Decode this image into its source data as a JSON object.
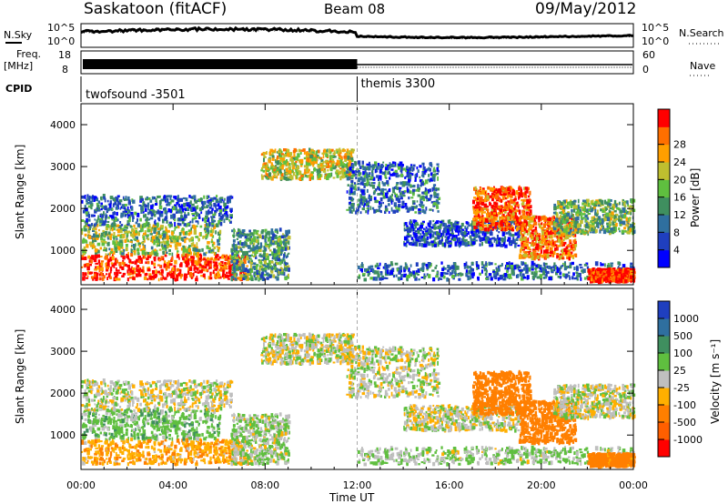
{
  "header": {
    "station": "Saskatoon (fitACF)",
    "beam": "Beam 08",
    "date": "09/May/2012"
  },
  "top_panels": {
    "nsky_label": "N.Sky",
    "nsearch_label": "N.Search",
    "noise_ticks_left": [
      "10^5",
      "10^0"
    ],
    "noise_ticks_right": [
      "10^5",
      "10^0"
    ],
    "freq_label_line1": "Freq.",
    "freq_label_line2": "[MHz]",
    "freq_ticks": [
      "18",
      "8"
    ],
    "nave_label": "Nave",
    "nave_ticks": [
      "60",
      "0"
    ],
    "cpid_label": "CPID",
    "cpid_segments": [
      {
        "name": "twofsound -3501",
        "start_hour": 0,
        "end_hour": 12
      },
      {
        "name": "themis 3300",
        "start_hour": 12,
        "end_hour": 24
      }
    ]
  },
  "power_panel": {
    "ylabel": "Slant Range [km]",
    "yticks": [
      "1000",
      "2000",
      "3000",
      "4000"
    ],
    "colorbar_label": "Power [dB]",
    "colorbar_ticks": [
      "4",
      "8",
      "12",
      "16",
      "20",
      "24",
      "28"
    ],
    "colorbar_colors": [
      "#0000ff",
      "#1f3fbf",
      "#2f6f9f",
      "#3f8f5f",
      "#5fbf3f",
      "#bfbf2f",
      "#ff9f00",
      "#ff6f00",
      "#ff0000"
    ]
  },
  "velocity_panel": {
    "ylabel": "Slant Range [km]",
    "yticks": [
      "1000",
      "2000",
      "3000",
      "4000"
    ],
    "colorbar_label": "Velocity [m s⁻¹]",
    "colorbar_ticks": [
      "1000",
      "500",
      "100",
      "25",
      "-25",
      "-100",
      "-500",
      "-1000"
    ],
    "colorbar_colors": [
      "#1f3fbf",
      "#2f6f9f",
      "#3f8f5f",
      "#5fbf3f",
      "#bfbfbf",
      "#ffaf00",
      "#ff7f00",
      "#ff5f00",
      "#ff0000"
    ]
  },
  "x_axis": {
    "ticks": [
      "00:00",
      "04:00",
      "08:00",
      "12:00",
      "16:00",
      "20:00",
      "00:00"
    ],
    "label": "Time UT"
  },
  "chart_data": {
    "type": "heatmap",
    "x_range_hours": [
      0,
      24
    ],
    "y_range_km": [
      180,
      4500
    ],
    "power_scale_db": [
      0,
      30
    ],
    "velocity_scale_ms": [
      -1000,
      1000
    ],
    "scatter_regions": [
      {
        "t0": 0.0,
        "t1": 7.2,
        "r0": 300,
        "r1": 900,
        "power": 28,
        "velocity": -80
      },
      {
        "t0": 0.0,
        "t1": 6.0,
        "r0": 900,
        "r1": 1600,
        "power": 16,
        "velocity": 60
      },
      {
        "t0": 0.0,
        "t1": 6.5,
        "r0": 1600,
        "r1": 2300,
        "power": 8,
        "velocity": 0
      },
      {
        "t0": 6.5,
        "t1": 9.0,
        "r0": 300,
        "r1": 1500,
        "power": 12,
        "velocity": 20
      },
      {
        "t0": 7.8,
        "t1": 11.8,
        "r0": 2700,
        "r1": 3400,
        "power": 18,
        "velocity": 0
      },
      {
        "t0": 11.5,
        "t1": 15.5,
        "r0": 1900,
        "r1": 3100,
        "power": 8,
        "velocity": 0
      },
      {
        "t0": 14.0,
        "t1": 19.0,
        "r0": 1100,
        "r1": 1700,
        "power": 6,
        "velocity": 0
      },
      {
        "t0": 12.0,
        "t1": 24.0,
        "r0": 300,
        "r1": 700,
        "power": 8,
        "velocity": 30
      },
      {
        "t0": 17.0,
        "t1": 19.5,
        "r0": 1500,
        "r1": 2500,
        "power": 26,
        "velocity": -300
      },
      {
        "t0": 19.0,
        "t1": 21.5,
        "r0": 800,
        "r1": 1800,
        "power": 24,
        "velocity": -200
      },
      {
        "t0": 20.5,
        "t1": 24.0,
        "r0": 1400,
        "r1": 2200,
        "power": 14,
        "velocity": 0
      },
      {
        "t0": 22.0,
        "t1": 24.0,
        "r0": 250,
        "r1": 550,
        "power": 28,
        "velocity": -150
      }
    ]
  }
}
